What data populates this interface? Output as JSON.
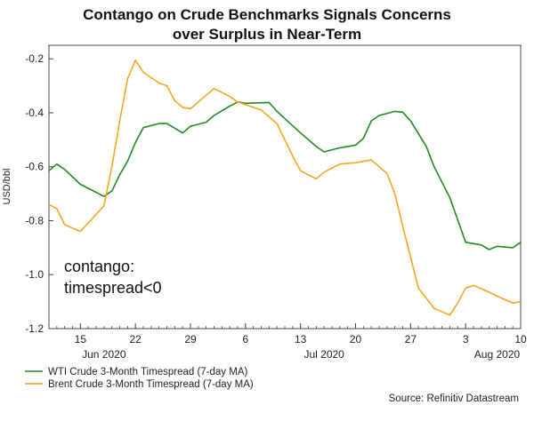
{
  "chart_data": {
    "type": "line",
    "title_lines": [
      "Contango on Crude Benchmarks Signals Concerns",
      "over Surplus in Near-Term"
    ],
    "ylabel": "USD/bbl",
    "ylim": [
      -1.2,
      -0.15
    ],
    "yticks": [
      -0.2,
      -0.4,
      -0.6,
      -0.8,
      -1.0,
      -1.2
    ],
    "ytick_labels": [
      "-0.2",
      "-0.4",
      "-0.6",
      "-0.8",
      "-1.0",
      "-1.2"
    ],
    "xlim": [
      "2020-06-11",
      "2020-08-10"
    ],
    "xticks": [
      {
        "date": "2020-06-15",
        "label": "15"
      },
      {
        "date": "2020-06-22",
        "label": "22"
      },
      {
        "date": "2020-06-29",
        "label": "29"
      },
      {
        "date": "2020-07-06",
        "label": "6"
      },
      {
        "date": "2020-07-13",
        "label": "13"
      },
      {
        "date": "2020-07-20",
        "label": "20"
      },
      {
        "date": "2020-07-27",
        "label": "27"
      },
      {
        "date": "2020-08-03",
        "label": "3"
      },
      {
        "date": "2020-08-10",
        "label": "10"
      }
    ],
    "month_labels": [
      {
        "date": "2020-06-18",
        "label": "Jun 2020"
      },
      {
        "date": "2020-07-16",
        "label": "Jul 2020"
      },
      {
        "date": "2020-08-07",
        "label": "Aug 2020"
      }
    ],
    "grid": false,
    "legend_position": "bottom-left",
    "annotation_lines": [
      "contango:",
      "timespread<0"
    ],
    "source": "Source: Refinitiv Datastream",
    "series": [
      {
        "name": "WTI Crude 3-Month Timespread (7-day MA)",
        "color": "#1f8a1f",
        "points": [
          [
            "2020-06-11",
            -0.615
          ],
          [
            "2020-06-12",
            -0.59
          ],
          [
            "2020-06-13",
            -0.61
          ],
          [
            "2020-06-15",
            -0.665
          ],
          [
            "2020-06-18",
            -0.71
          ],
          [
            "2020-06-19",
            -0.69
          ],
          [
            "2020-06-20",
            -0.63
          ],
          [
            "2020-06-21",
            -0.58
          ],
          [
            "2020-06-22",
            -0.51
          ],
          [
            "2020-06-23",
            -0.455
          ],
          [
            "2020-06-25",
            -0.44
          ],
          [
            "2020-06-26",
            -0.44
          ],
          [
            "2020-06-28",
            -0.475
          ],
          [
            "2020-06-29",
            -0.45
          ],
          [
            "2020-07-01",
            -0.435
          ],
          [
            "2020-07-02",
            -0.41
          ],
          [
            "2020-07-04",
            -0.375
          ],
          [
            "2020-07-05",
            -0.36
          ],
          [
            "2020-07-06",
            -0.365
          ],
          [
            "2020-07-09",
            -0.362
          ],
          [
            "2020-07-10",
            -0.395
          ],
          [
            "2020-07-13",
            -0.475
          ],
          [
            "2020-07-15",
            -0.525
          ],
          [
            "2020-07-16",
            -0.545
          ],
          [
            "2020-07-18",
            -0.53
          ],
          [
            "2020-07-20",
            -0.52
          ],
          [
            "2020-07-21",
            -0.495
          ],
          [
            "2020-07-22",
            -0.43
          ],
          [
            "2020-07-23",
            -0.41
          ],
          [
            "2020-07-25",
            -0.395
          ],
          [
            "2020-07-26",
            -0.398
          ],
          [
            "2020-07-27",
            -0.43
          ],
          [
            "2020-07-29",
            -0.525
          ],
          [
            "2020-07-30",
            -0.6
          ],
          [
            "2020-08-01",
            -0.715
          ],
          [
            "2020-08-03",
            -0.88
          ],
          [
            "2020-08-05",
            -0.89
          ],
          [
            "2020-08-06",
            -0.907
          ],
          [
            "2020-08-07",
            -0.895
          ],
          [
            "2020-08-09",
            -0.9
          ],
          [
            "2020-08-10",
            -0.88
          ]
        ]
      },
      {
        "name": "Brent Crude 3-Month Timespread (7-day MA)",
        "color": "#f5a623",
        "points": [
          [
            "2020-06-11",
            -0.74
          ],
          [
            "2020-06-12",
            -0.755
          ],
          [
            "2020-06-13",
            -0.815
          ],
          [
            "2020-06-15",
            -0.84
          ],
          [
            "2020-06-18",
            -0.745
          ],
          [
            "2020-06-19",
            -0.6
          ],
          [
            "2020-06-20",
            -0.43
          ],
          [
            "2020-06-21",
            -0.275
          ],
          [
            "2020-06-22",
            -0.205
          ],
          [
            "2020-06-23",
            -0.25
          ],
          [
            "2020-06-25",
            -0.29
          ],
          [
            "2020-06-26",
            -0.3
          ],
          [
            "2020-06-27",
            -0.355
          ],
          [
            "2020-06-28",
            -0.38
          ],
          [
            "2020-06-29",
            -0.385
          ],
          [
            "2020-07-01",
            -0.335
          ],
          [
            "2020-07-02",
            -0.31
          ],
          [
            "2020-07-04",
            -0.34
          ],
          [
            "2020-07-05",
            -0.36
          ],
          [
            "2020-07-06",
            -0.37
          ],
          [
            "2020-07-08",
            -0.39
          ],
          [
            "2020-07-10",
            -0.44
          ],
          [
            "2020-07-12",
            -0.56
          ],
          [
            "2020-07-13",
            -0.615
          ],
          [
            "2020-07-15",
            -0.645
          ],
          [
            "2020-07-16",
            -0.62
          ],
          [
            "2020-07-18",
            -0.59
          ],
          [
            "2020-07-20",
            -0.585
          ],
          [
            "2020-07-22",
            -0.575
          ],
          [
            "2020-07-24",
            -0.625
          ],
          [
            "2020-07-25",
            -0.7
          ],
          [
            "2020-07-26",
            -0.82
          ],
          [
            "2020-07-27",
            -0.935
          ],
          [
            "2020-07-28",
            -1.05
          ],
          [
            "2020-07-30",
            -1.125
          ],
          [
            "2020-08-01",
            -1.15
          ],
          [
            "2020-08-02",
            -1.105
          ],
          [
            "2020-08-03",
            -1.05
          ],
          [
            "2020-08-04",
            -1.04
          ],
          [
            "2020-08-06",
            -1.065
          ],
          [
            "2020-08-07",
            -1.08
          ],
          [
            "2020-08-09",
            -1.105
          ],
          [
            "2020-08-10",
            -1.1
          ]
        ]
      }
    ]
  }
}
